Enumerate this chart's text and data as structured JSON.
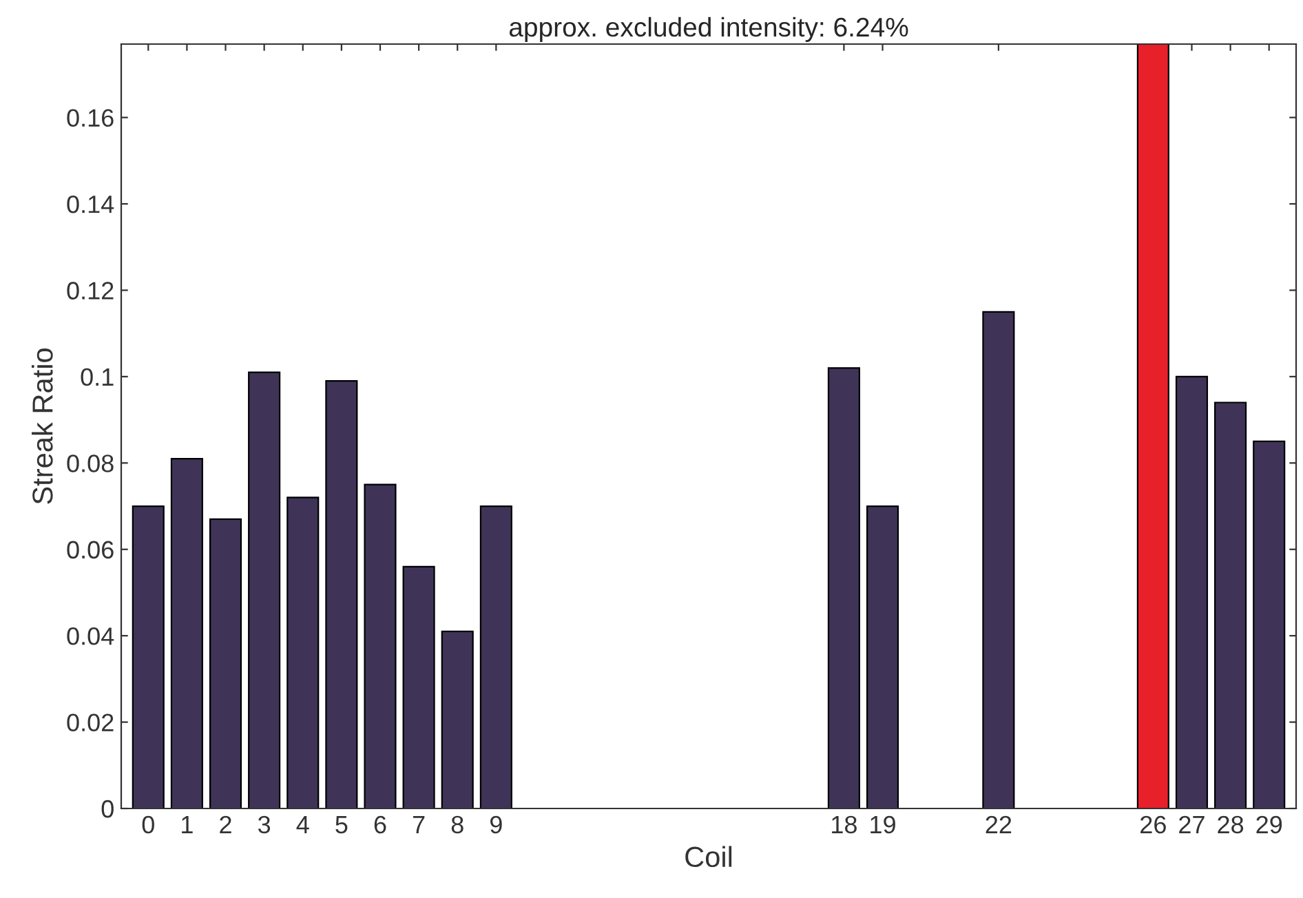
{
  "chart_data": {
    "type": "bar",
    "title": "approx. excluded intensity: 6.24%",
    "xlabel": "Coil",
    "ylabel": "Streak Ratio",
    "x": [
      0,
      1,
      2,
      3,
      4,
      5,
      6,
      7,
      8,
      9,
      18,
      19,
      22,
      26,
      27,
      28,
      29
    ],
    "values": [
      0.07,
      0.081,
      0.067,
      0.101,
      0.072,
      0.099,
      0.075,
      0.056,
      0.041,
      0.07,
      0.102,
      0.07,
      0.115,
      0.177,
      0.1,
      0.094,
      0.085
    ],
    "colors": [
      "#3f3458",
      "#3f3458",
      "#3f3458",
      "#3f3458",
      "#3f3458",
      "#3f3458",
      "#3f3458",
      "#3f3458",
      "#3f3458",
      "#3f3458",
      "#3f3458",
      "#3f3458",
      "#3f3458",
      "#e8202a",
      "#3f3458",
      "#3f3458",
      "#3f3458"
    ],
    "xlim": [
      -0.7,
      29.7
    ],
    "xticks": [
      0,
      1,
      2,
      3,
      4,
      5,
      6,
      7,
      8,
      9,
      18,
      19,
      22,
      26,
      27,
      28,
      29
    ],
    "ylim": [
      0,
      0.177
    ],
    "yticks": [
      0,
      0.02,
      0.04,
      0.06,
      0.08,
      0.1,
      0.12,
      0.14,
      0.16
    ],
    "grid": false,
    "legend": false
  }
}
